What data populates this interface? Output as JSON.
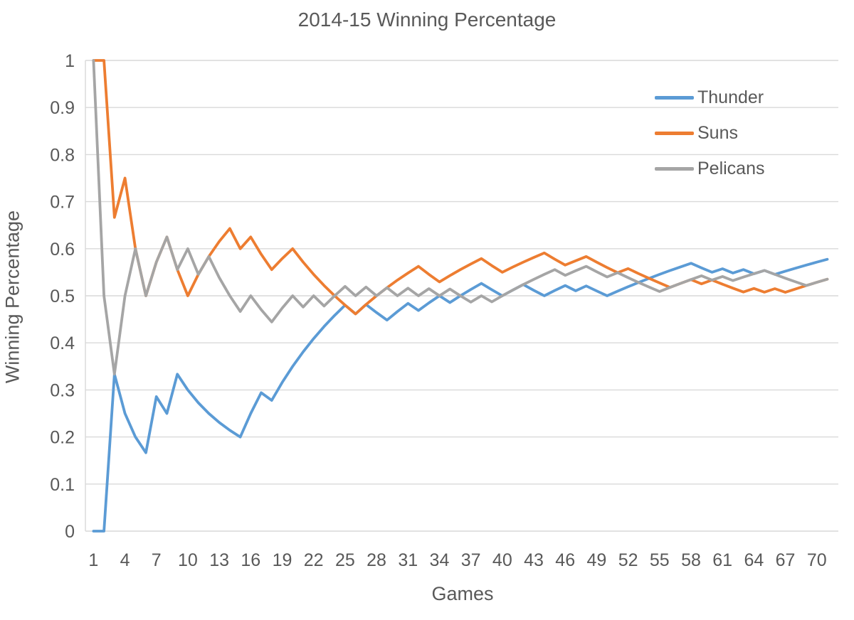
{
  "title": "2014-15 Winning Percentage",
  "y_axis": {
    "title": "Winning Percentage",
    "ticks": [
      {
        "label": "1",
        "value": 1.0
      },
      {
        "label": "0.9",
        "value": 0.9
      },
      {
        "label": "0.8",
        "value": 0.8
      },
      {
        "label": "0.7",
        "value": 0.7
      },
      {
        "label": "0.6",
        "value": 0.6
      },
      {
        "label": "0.5",
        "value": 0.5
      },
      {
        "label": "0.4",
        "value": 0.4
      },
      {
        "label": "0.3",
        "value": 0.3
      },
      {
        "label": "0.2",
        "value": 0.2
      },
      {
        "label": "0.1",
        "value": 0.1
      },
      {
        "label": "0",
        "value": 0.0
      }
    ]
  },
  "x_axis": {
    "title": "Games",
    "tick_labels": [
      1,
      4,
      7,
      10,
      13,
      16,
      19,
      22,
      25,
      28,
      31,
      34,
      37,
      40,
      43,
      46,
      49,
      52,
      55,
      58,
      61,
      64,
      67,
      70
    ]
  },
  "colors": {
    "text": "#595959",
    "gridline": "#D9D9D9",
    "background": "#FFFFFF"
  },
  "chart_data": {
    "type": "line",
    "title": "2014-15 Winning Percentage",
    "xlabel": "Games",
    "ylabel": "Winning Percentage",
    "x_description": "Game number 1 through 71; y value at game n is cumulative wins/n",
    "n_games": 71,
    "ylim": [
      0,
      1
    ],
    "grid": "horizontal",
    "legend_position": "top-right-inside",
    "series": [
      {
        "name": "Thunder",
        "color": "#5B9BD5",
        "final_pct": 0.577,
        "results_w1_l0": [
          0,
          0,
          1,
          0,
          0,
          0,
          1,
          0,
          1,
          0,
          0,
          0,
          0,
          0,
          0,
          1,
          1,
          0,
          1,
          1,
          1,
          1,
          1,
          1,
          1,
          0,
          1,
          0,
          0,
          1,
          1,
          0,
          1,
          1,
          0,
          1,
          1,
          1,
          0,
          0,
          1,
          1,
          0,
          0,
          1,
          1,
          0,
          1,
          0,
          0,
          1,
          1,
          1,
          1,
          1,
          1,
          1,
          1,
          0,
          0,
          1,
          0,
          1,
          0,
          1,
          0,
          1,
          1,
          1,
          1,
          1
        ]
      },
      {
        "name": "Suns",
        "color": "#ED7D31",
        "final_pct": 0.535,
        "results_w1_l0": [
          1,
          1,
          0,
          1,
          0,
          0,
          1,
          1,
          0,
          0,
          1,
          1,
          1,
          1,
          0,
          1,
          0,
          0,
          1,
          1,
          0,
          0,
          0,
          0,
          0,
          0,
          1,
          1,
          1,
          1,
          1,
          1,
          0,
          0,
          1,
          1,
          1,
          1,
          0,
          0,
          1,
          1,
          1,
          1,
          0,
          0,
          1,
          1,
          0,
          0,
          0,
          1,
          0,
          0,
          0,
          0,
          1,
          1,
          0,
          1,
          0,
          0,
          0,
          1,
          0,
          1,
          0,
          1,
          1,
          1,
          1
        ]
      },
      {
        "name": "Pelicans",
        "color": "#A5A5A5",
        "final_pct": 0.535,
        "results_w1_l0": [
          1,
          0,
          0,
          1,
          1,
          0,
          1,
          1,
          0,
          1,
          0,
          1,
          0,
          0,
          0,
          1,
          0,
          0,
          1,
          1,
          0,
          1,
          0,
          1,
          1,
          0,
          1,
          0,
          1,
          0,
          1,
          0,
          1,
          0,
          1,
          0,
          0,
          1,
          0,
          1,
          1,
          1,
          1,
          1,
          1,
          0,
          1,
          1,
          0,
          0,
          1,
          0,
          0,
          0,
          0,
          1,
          1,
          1,
          1,
          0,
          1,
          0,
          1,
          1,
          1,
          0,
          0,
          0,
          0,
          1,
          1
        ]
      }
    ]
  }
}
